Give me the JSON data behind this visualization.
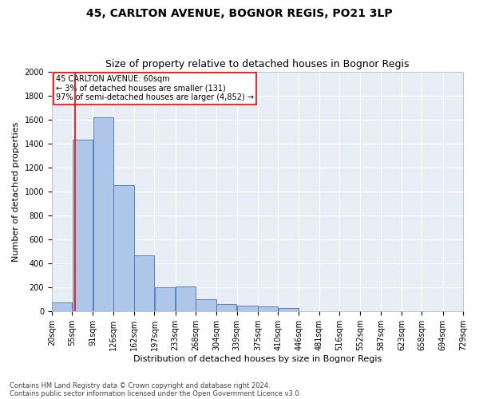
{
  "title1": "45, CARLTON AVENUE, BOGNOR REGIS, PO21 3LP",
  "title2": "Size of property relative to detached houses in Bognor Regis",
  "xlabel": "Distribution of detached houses by size in Bognor Regis",
  "ylabel": "Number of detached properties",
  "footnote1": "Contains HM Land Registry data © Crown copyright and database right 2024.",
  "footnote2": "Contains public sector information licensed under the Open Government Licence v3.0.",
  "annotation_line1": "45 CARLTON AVENUE: 60sqm",
  "annotation_line2": "← 3% of detached houses are smaller (131)",
  "annotation_line3": "97% of semi-detached houses are larger (4,852) →",
  "bar_color": "#aec6e8",
  "bar_edge_color": "#4472c4",
  "red_line_x": 60,
  "ylim": [
    0,
    2000
  ],
  "yticks": [
    0,
    200,
    400,
    600,
    800,
    1000,
    1200,
    1400,
    1600,
    1800,
    2000
  ],
  "bin_edges": [
    20,
    55,
    91,
    126,
    162,
    197,
    233,
    268,
    304,
    339,
    375,
    410,
    446,
    481,
    516,
    552,
    587,
    623,
    658,
    694,
    729
  ],
  "bar_heights": [
    75,
    1430,
    1620,
    1050,
    470,
    200,
    205,
    100,
    60,
    50,
    40,
    30,
    0,
    0,
    0,
    0,
    0,
    0,
    0,
    0
  ],
  "background_color": "#e8eef5",
  "grid_color": "#ffffff",
  "fig_bg_color": "#ffffff",
  "title1_fontsize": 10,
  "title2_fontsize": 9,
  "xlabel_fontsize": 8,
  "ylabel_fontsize": 8,
  "tick_fontsize": 7,
  "annot_fontsize": 7,
  "footnote_fontsize": 6
}
